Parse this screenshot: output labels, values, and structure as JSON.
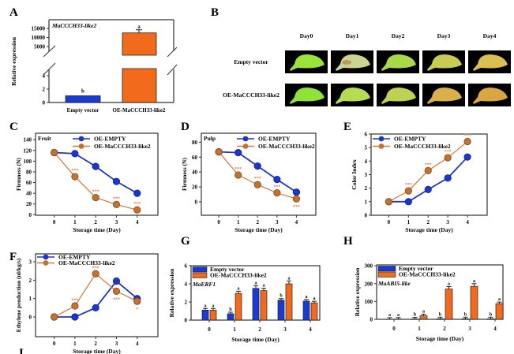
{
  "panel_labels": [
    "A",
    "B",
    "C",
    "D",
    "E",
    "F",
    "G",
    "H",
    "I"
  ],
  "colors": {
    "blue": "#1a3ad6",
    "orange": "#f26b1d",
    "line_orange": "#d0783a",
    "line_blue": "#1c36c8",
    "photo_bg": "#000000"
  },
  "photo_panel": {
    "days": [
      "Day0",
      "Day1",
      "Day2",
      "Day3",
      "Day4"
    ],
    "rows": [
      {
        "label": "Empty vector",
        "fruit_colors": [
          "#9be33a",
          "#cbd58e",
          "#a9d848",
          "#c9cc52",
          "#d9c052"
        ]
      },
      {
        "label": "OE-MaCCCH33-like2",
        "fruit_colors": [
          "#8fe23a",
          "#b6dc52",
          "#c0d052",
          "#d9b04a",
          "#d9a642"
        ]
      }
    ]
  },
  "chart_data": [
    {
      "panel": "A",
      "type": "bar",
      "gene": "MaCCCH33-like2",
      "ylabel": "Relative expression",
      "categories": [
        "Empty vector",
        "OE-MaCCCH33-like2"
      ],
      "values": [
        1,
        12500
      ],
      "letters": [
        "b",
        "a"
      ],
      "yticks_upper": [
        15000,
        10000,
        5000
      ],
      "yticks_lower": [
        4,
        2,
        0
      ],
      "axis_break": true
    },
    {
      "panel": "C",
      "type": "line",
      "note": "Fruit",
      "xlabel": "Storage time (Day)",
      "ylabel": "Firmness (N)",
      "x": [
        0,
        1,
        2,
        3,
        4
      ],
      "xticks": [
        0,
        1,
        2,
        3,
        4
      ],
      "yticks": [
        0,
        20,
        40,
        60,
        80,
        100,
        120,
        140
      ],
      "ylim": [
        -1,
        152
      ],
      "series": [
        {
          "name": "OE-EMPTY",
          "values": [
            116,
            114,
            90,
            62,
            40
          ]
        },
        {
          "name": "OE-MaCCCH33-like2",
          "values": [
            116,
            71,
            32,
            19,
            9
          ]
        }
      ],
      "significance": [
        "",
        "***",
        "***",
        "***",
        "***"
      ]
    },
    {
      "panel": "D",
      "type": "line",
      "note": "Pulp",
      "xlabel": "Storage time (Day)",
      "ylabel": "Firmness (N)",
      "x": [
        0,
        1,
        2,
        3,
        4
      ],
      "xticks": [
        0,
        1,
        2,
        3,
        4
      ],
      "yticks": [
        0,
        20,
        40,
        60,
        80
      ],
      "ylim": [
        -18,
        92
      ],
      "series": [
        {
          "name": "OE-EMPTY",
          "values": [
            67,
            66,
            48,
            30,
            13
          ]
        },
        {
          "name": "OE-MaCCCH33-like2",
          "values": [
            67,
            36,
            23,
            12,
            4
          ]
        }
      ],
      "significance": [
        "",
        "***",
        "***",
        "***",
        "***"
      ]
    },
    {
      "panel": "E",
      "type": "line",
      "note": "",
      "xlabel": "Storage time (Day)",
      "ylabel": "Color Index",
      "x": [
        0,
        1,
        2,
        3,
        4
      ],
      "xticks": [
        0,
        1,
        2,
        3,
        4
      ],
      "yticks": [
        0,
        1,
        2,
        3,
        4,
        5,
        6
      ],
      "ylim": [
        0,
        6
      ],
      "series": [
        {
          "name": "OE-EMPTY",
          "values": [
            1,
            1,
            1.9,
            2.75,
            4.3
          ]
        },
        {
          "name": "OE-MaCCCH33-like2",
          "values": [
            1,
            1.8,
            3.3,
            4.25,
            5.45
          ]
        }
      ],
      "significance": [
        "",
        "***",
        "***",
        "***",
        "***"
      ]
    },
    {
      "panel": "F",
      "type": "line",
      "note": "",
      "xlabel": "Storage time (Day)",
      "ylabel": "Ethylene production (nl/kg/s)",
      "x": [
        0,
        1,
        2,
        3,
        4
      ],
      "xticks": [
        0,
        1,
        2,
        3,
        4
      ],
      "yticks": [
        0,
        1,
        2,
        3
      ],
      "ylim": [
        -1.07,
        3.43
      ],
      "series": [
        {
          "name": "OE-EMPTY",
          "values": [
            0,
            0,
            0.5,
            1.95,
            1.0
          ]
        },
        {
          "name": "OE-MaCCCH33-like2",
          "values": [
            0,
            0.6,
            2.35,
            1.4,
            0.85
          ]
        }
      ],
      "significance": [
        "",
        "***",
        "***",
        "***",
        "*"
      ]
    },
    {
      "panel": "G",
      "type": "bar",
      "gene": "MaERF1",
      "xlabel": "Storage time (Day)",
      "ylabel": "Relative expression",
      "categories": [
        "0",
        "1",
        "2",
        "3",
        "4"
      ],
      "yticks": [
        0,
        2,
        4,
        6
      ],
      "ylim": [
        0,
        6
      ],
      "series": [
        {
          "name": "Empty vector",
          "values": [
            1.1,
            0.7,
            3.5,
            2.2,
            2.1
          ],
          "letters": [
            "a",
            "b",
            "a",
            "b",
            "a"
          ]
        },
        {
          "name": "OE-MaCCCH33-like2",
          "values": [
            1.1,
            2.95,
            3.25,
            4.0,
            1.9
          ],
          "letters": [
            "a",
            "a",
            "a",
            "a",
            "a"
          ]
        }
      ]
    },
    {
      "panel": "H",
      "type": "bar",
      "gene": "MaABI5-like",
      "xlabel": "Storage time (Day)",
      "ylabel": "Relative expression",
      "categories": [
        "0",
        "1",
        "2",
        "3",
        "4"
      ],
      "yticks": [
        0,
        100,
        200,
        300
      ],
      "ylim": [
        0,
        305
      ],
      "series": [
        {
          "name": "Empty vector",
          "values": [
            0.5,
            2,
            3,
            3,
            3
          ],
          "letters": [
            "a",
            "b",
            "b",
            "b",
            "b"
          ]
        },
        {
          "name": "OE-MaCCCH33-like2",
          "values": [
            1,
            20,
            170,
            185,
            88
          ],
          "letters": [
            "a",
            "a",
            "a",
            "a",
            "a"
          ]
        }
      ]
    }
  ]
}
